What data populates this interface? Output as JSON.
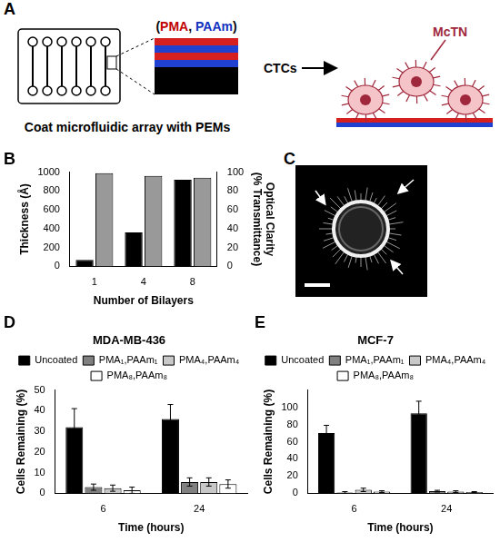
{
  "diagram": {
    "panel": "A",
    "caption": "Coat microfluidic array with PEMs",
    "layer_label": [
      "(",
      "PMA",
      ", ",
      "PAAm",
      ")"
    ],
    "cells_label": "CTCs",
    "coating_label": "McTN"
  },
  "image": {
    "panel": "C"
  },
  "chart_data": [
    {
      "panel": "B",
      "type": "bar",
      "categories": [
        "1",
        "4",
        "8"
      ],
      "xlabel": "Number of Bilayers",
      "ylabel": "Thickness (Å)",
      "y2label": [
        "Optical Clarity",
        "(% Transmittance)"
      ],
      "ylim": [
        0,
        1000
      ],
      "yticks": [
        0,
        200,
        400,
        600,
        800,
        1000
      ],
      "y2lim": [
        0,
        100
      ],
      "y2ticks": [
        0,
        20,
        40,
        60,
        80,
        100
      ],
      "grid": false,
      "series": [
        {
          "color": "#000000",
          "values": [
            70,
            360,
            920
          ]
        },
        {
          "color": "#999999",
          "values": [
            99,
            96,
            94
          ],
          "axis": "y2"
        }
      ]
    },
    {
      "panel": "D",
      "type": "bar",
      "title": "MDA-MB-436",
      "categories": [
        "6",
        "24"
      ],
      "xlabel": "Time (hours)",
      "ylabel": "Cells Remaining (%)",
      "ylim": [
        0,
        50
      ],
      "yticks": [
        0,
        10,
        20,
        30,
        40,
        50
      ],
      "grid": false,
      "legend": "top",
      "series": [
        {
          "name": "Uncoated",
          "color": "#000000",
          "values": [
            32,
            36
          ],
          "errors": [
            9,
            7
          ]
        },
        {
          "name": "PMA₁,PAAm₁",
          "color": "#808080",
          "values": [
            3,
            5.5
          ],
          "errors": [
            1.5,
            2
          ]
        },
        {
          "name": "PMA₄,PAAm₄",
          "color": "#c8c8c8",
          "values": [
            2.5,
            5.5
          ],
          "errors": [
            1.5,
            2
          ]
        },
        {
          "name": "PMA₈,PAAm₈",
          "color": "#ffffff",
          "values": [
            1.5,
            4.5
          ],
          "errors": [
            1.5,
            2
          ]
        }
      ]
    },
    {
      "panel": "E",
      "type": "bar",
      "title": "MCF-7",
      "categories": [
        "6",
        "24"
      ],
      "xlabel": "Time (hours)",
      "ylabel": "Cells Remaining (%)",
      "ylim": [
        0,
        120
      ],
      "yticks": [
        0,
        20,
        40,
        60,
        80,
        100
      ],
      "grid": false,
      "legend": "top",
      "series": [
        {
          "name": "Uncoated",
          "color": "#000000",
          "values": [
            70,
            93
          ],
          "errors": [
            9,
            14
          ]
        },
        {
          "name": "PMA₁,PAAm₁",
          "color": "#808080",
          "values": [
            1,
            2.5
          ],
          "errors": [
            1,
            1
          ]
        },
        {
          "name": "PMA₄,PAAm₄",
          "color": "#c8c8c8",
          "values": [
            4,
            2
          ],
          "errors": [
            2,
            1
          ]
        },
        {
          "name": "PMA₈,PAAm₈",
          "color": "#ffffff",
          "values": [
            2,
            1.5
          ],
          "errors": [
            1,
            0.5
          ]
        }
      ]
    }
  ]
}
